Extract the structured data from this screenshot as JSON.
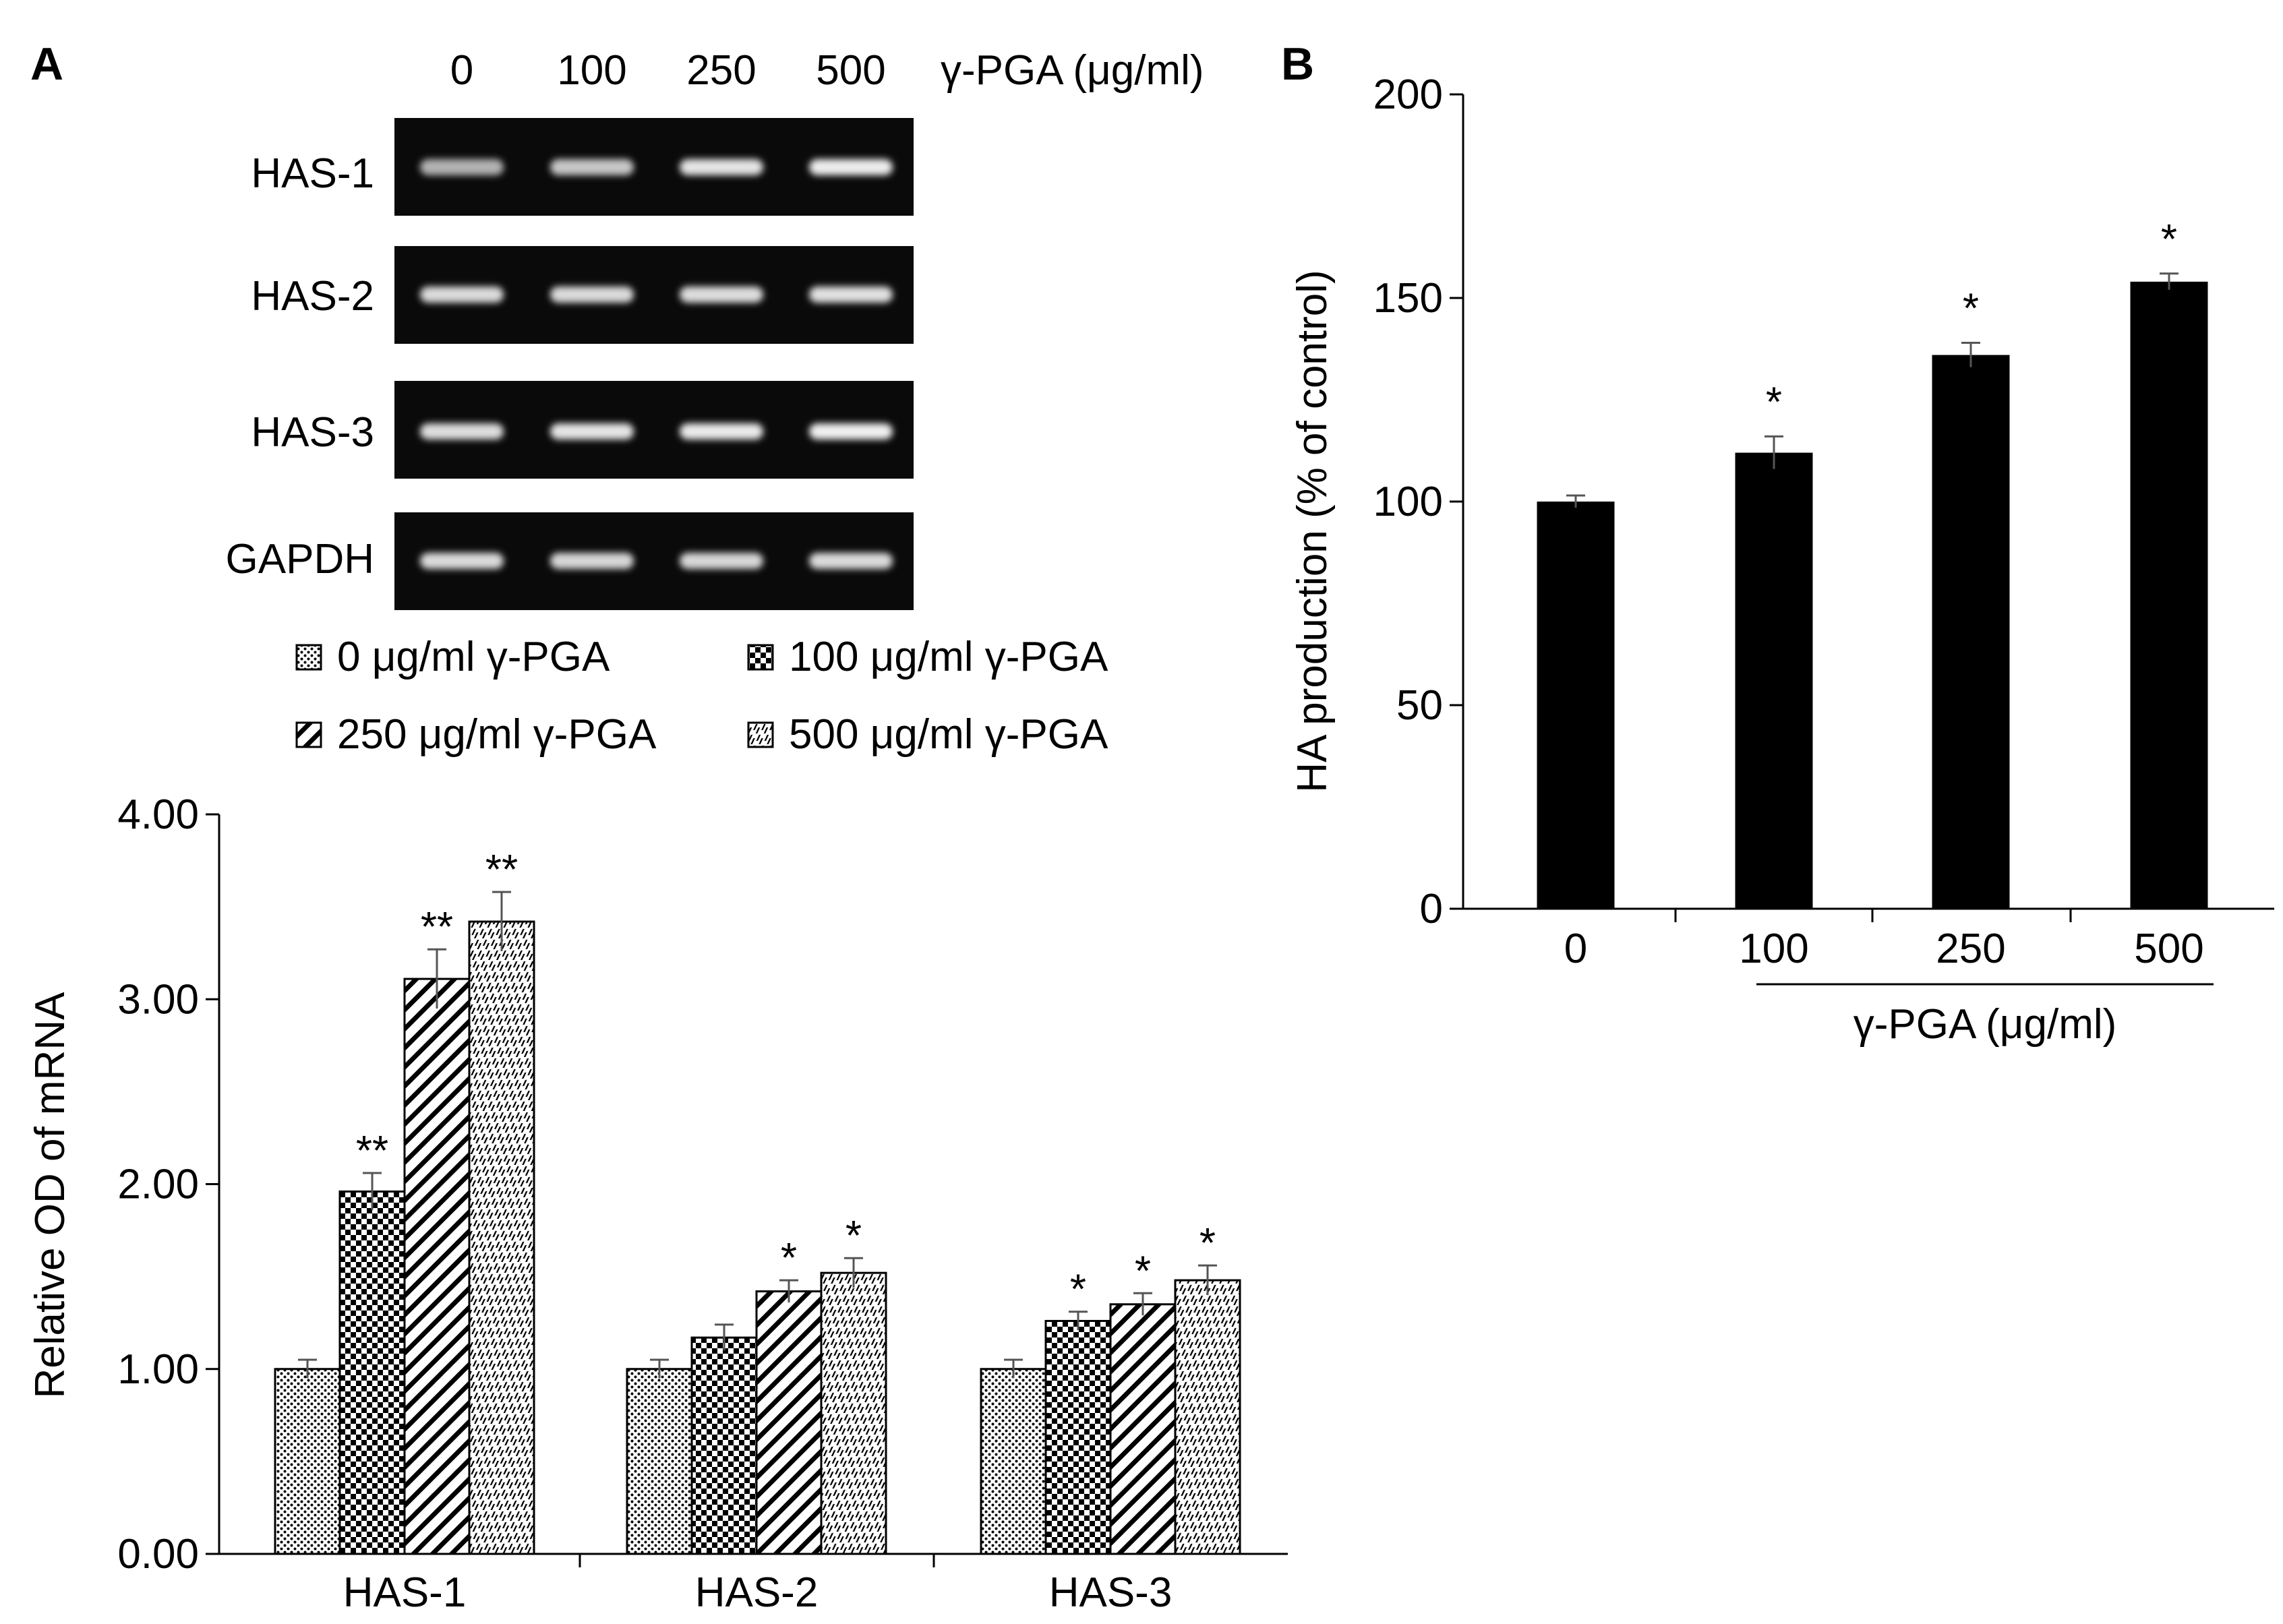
{
  "panel_labels": {
    "a": "A",
    "b": "B"
  },
  "gel": {
    "lane_labels": [
      "0",
      "100",
      "250",
      "500"
    ],
    "lane_axis_label": "γ-PGA (μg/ml)",
    "rows": [
      "HAS-1",
      "HAS-2",
      "HAS-3",
      "GAPDH"
    ],
    "band_intensity": [
      [
        0.55,
        0.68,
        0.86,
        0.92
      ],
      [
        0.8,
        0.8,
        0.82,
        0.84
      ],
      [
        0.82,
        0.87,
        0.9,
        0.94
      ],
      [
        0.8,
        0.78,
        0.78,
        0.8
      ]
    ]
  },
  "chart_data": [
    {
      "type": "bar",
      "panel": "A",
      "categories": [
        "HAS-1",
        "HAS-2",
        "HAS-3"
      ],
      "series": [
        {
          "name": "0 μg/ml γ-PGA",
          "values": [
            1.0,
            1.0,
            1.0
          ],
          "errors": [
            0.05,
            0.05,
            0.05
          ],
          "pattern": "dots",
          "sig": [
            "",
            "",
            ""
          ]
        },
        {
          "name": "100 μg/ml γ-PGA",
          "values": [
            1.96,
            1.17,
            1.26
          ],
          "errors": [
            0.1,
            0.07,
            0.05
          ],
          "pattern": "checker",
          "sig": [
            "**",
            "",
            "*"
          ]
        },
        {
          "name": "250 μg/ml γ-PGA",
          "values": [
            3.11,
            1.42,
            1.35
          ],
          "errors": [
            0.16,
            0.06,
            0.06
          ],
          "pattern": "diagonal",
          "sig": [
            "**",
            "*",
            "*"
          ]
        },
        {
          "name": "500 μg/ml γ-PGA",
          "values": [
            3.42,
            1.52,
            1.48
          ],
          "errors": [
            0.16,
            0.08,
            0.08
          ],
          "pattern": "fine-diagonal",
          "sig": [
            "**",
            "*",
            "*"
          ]
        }
      ],
      "xlabel": "",
      "ylabel": "Relative OD of mRNA",
      "ylim": [
        0,
        4
      ],
      "yticks": [
        "0.00",
        "1.00",
        "2.00",
        "3.00",
        "4.00"
      ],
      "grid": false,
      "legend": "top"
    },
    {
      "type": "bar",
      "panel": "B",
      "categories": [
        "0",
        "100",
        "250",
        "500"
      ],
      "values": [
        100,
        112,
        136,
        154
      ],
      "errors": [
        1.5,
        4,
        3,
        2
      ],
      "sig": [
        "",
        "*",
        "*",
        "*"
      ],
      "xlabel": "γ-PGA (μg/ml)",
      "ylabel": "HA production (% of control)",
      "ylim": [
        0,
        200
      ],
      "yticks": [
        "0",
        "50",
        "100",
        "150",
        "200"
      ],
      "grid": false,
      "bar_color": "#000000"
    }
  ]
}
